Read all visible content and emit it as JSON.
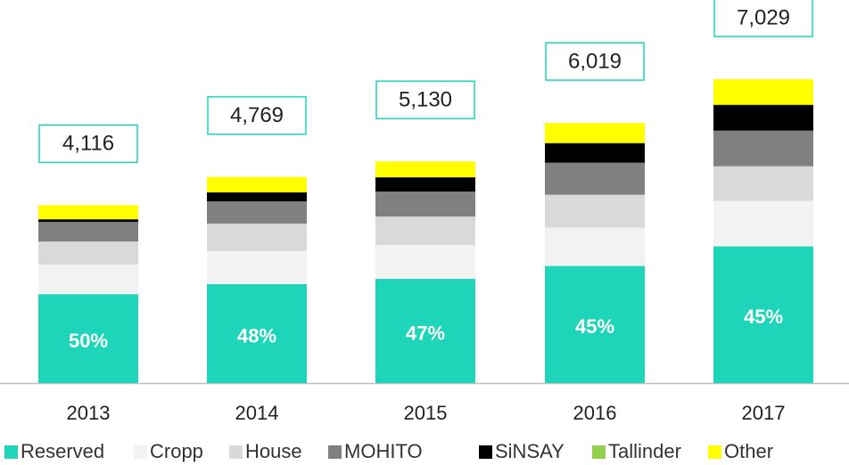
{
  "chart_data": {
    "type": "stacked_bar",
    "categories": [
      "2013",
      "2014",
      "2015",
      "2016",
      "2017"
    ],
    "series": [
      {
        "name": "Reserved",
        "color": "#1ed4b9",
        "values": [
          2058,
          2289,
          2411,
          2709,
          3163
        ],
        "value_labels": [
          "50%",
          "48%",
          "47%",
          "45%",
          "45%"
        ]
      },
      {
        "name": "Cropp",
        "color": "#f2f2f2",
        "values": [
          680,
          762,
          783,
          886,
          1051
        ]
      },
      {
        "name": "House",
        "color": "#d9d9d9",
        "values": [
          536,
          639,
          659,
          762,
          803
        ]
      },
      {
        "name": "MOHITO",
        "color": "#808080",
        "values": [
          453,
          515,
          577,
          742,
          824
        ]
      },
      {
        "name": "SiNSAY",
        "color": "#000000",
        "values": [
          62,
          206,
          330,
          453,
          597
        ]
      },
      {
        "name": "Tallinder",
        "color": "#92d050",
        "values": [
          0,
          0,
          0,
          0,
          0
        ]
      },
      {
        "name": "Other",
        "color": "#ffff00",
        "values": [
          327,
          358,
          370,
          467,
          591
        ]
      }
    ],
    "totals": [
      {
        "value": 4116,
        "label": "4,116"
      },
      {
        "value": 4769,
        "label": "4,769"
      },
      {
        "value": 5130,
        "label": "5,130"
      },
      {
        "value": 6019,
        "label": "6,019"
      },
      {
        "value": 7029,
        "label": "7,029"
      }
    ],
    "total_box_color": "#1ed4b9"
  }
}
